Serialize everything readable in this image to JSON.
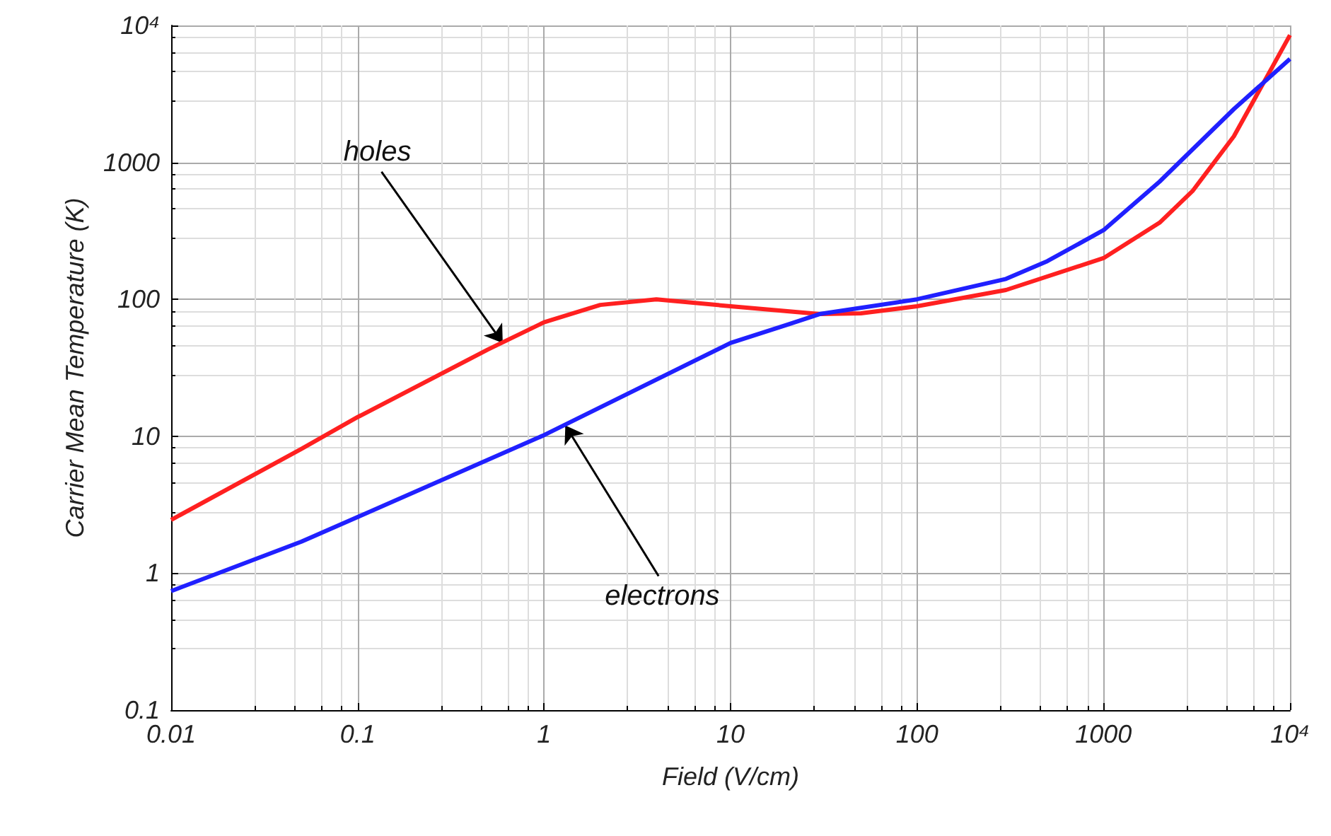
{
  "chart_data": {
    "type": "line",
    "xlabel": "Field (V/cm)",
    "ylabel": "Carrier Mean Temperature (K)",
    "log": "xy",
    "grid": true,
    "xlim": [
      0.01,
      10000
    ],
    "ylim": [
      0.1,
      10000
    ],
    "xticks": [
      0.01,
      0.1,
      1,
      10,
      100,
      1000,
      {
        "value": 10000,
        "label": "10⁴"
      }
    ],
    "yticks": [
      0.1,
      1,
      10,
      100,
      1000,
      {
        "value": 10000,
        "label": "10⁴"
      }
    ],
    "series": [
      {
        "color": "#ff2020",
        "x": [
          0.01,
          0.05,
          0.1,
          0.5,
          1,
          2,
          4,
          10,
          30,
          50,
          100,
          300,
          1000,
          2000,
          3000,
          5000,
          10000
        ],
        "values": [
          2.45,
          8.1,
          13.8,
          43,
          68,
          91,
          100,
          89,
          78,
          79,
          89,
          117,
          200,
          363,
          617,
          1550,
          8500
        ]
      },
      {
        "color": "#2020ff",
        "x": [
          0.01,
          0.05,
          0.1,
          1,
          10,
          20,
          30,
          100,
          300,
          500,
          1000,
          2000,
          5000,
          10000
        ],
        "values": [
          0.74,
          1.7,
          2.57,
          10.2,
          48,
          65,
          78,
          100,
          141,
          190,
          320,
          724,
          2450,
          5700
        ]
      }
    ],
    "annotations": [
      {
        "text": "holes",
        "x": 0.6,
        "y": 48
      },
      {
        "text": "electrons",
        "x": 1.3,
        "y": 12
      }
    ]
  }
}
